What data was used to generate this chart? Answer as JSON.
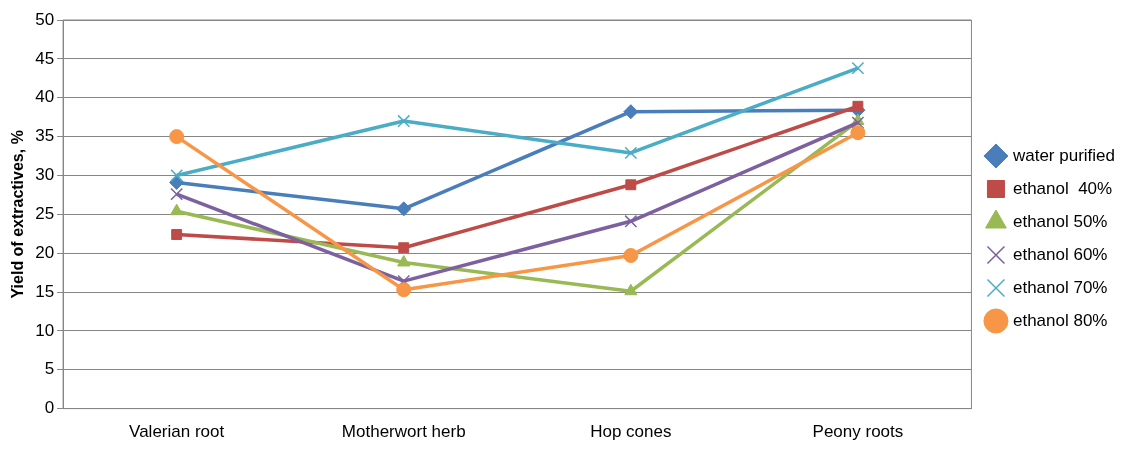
{
  "chart_data": {
    "type": "line",
    "ylabel": "Yield of extractives, %",
    "categories": [
      "Valerian root",
      "Motherwort herb",
      "Hop cones",
      "Peony roots"
    ],
    "ylim": [
      0,
      50
    ],
    "yticks": [
      0,
      5,
      10,
      15,
      20,
      25,
      30,
      35,
      40,
      45,
      50
    ],
    "grid": "y",
    "legend": "right",
    "series": [
      {
        "name": "water purified",
        "color": "#4a7ebb",
        "marker": "diamond",
        "values": [
          29.1,
          25.7,
          38.2,
          38.4
        ]
      },
      {
        "name": "ethanol  40%",
        "color": "#be4b48",
        "marker": "square",
        "values": [
          22.4,
          20.7,
          28.8,
          38.9
        ]
      },
      {
        "name": "ethanol 50%",
        "color": "#98b954",
        "marker": "triangle",
        "values": [
          25.4,
          18.8,
          15.1,
          37
        ]
      },
      {
        "name": "ethanol 60%",
        "color": "#7d60a0",
        "marker": "cross",
        "values": [
          27.6,
          16.4,
          24.1,
          36.8
        ]
      },
      {
        "name": "ethanol 70%",
        "color": "#4bacc6",
        "marker": "cross",
        "values": [
          30,
          37,
          32.9,
          43.8
        ]
      },
      {
        "name": "ethanol 80%",
        "color": "#f79646",
        "marker": "circle",
        "values": [
          35,
          15.3,
          19.7,
          35.5
        ]
      }
    ]
  }
}
